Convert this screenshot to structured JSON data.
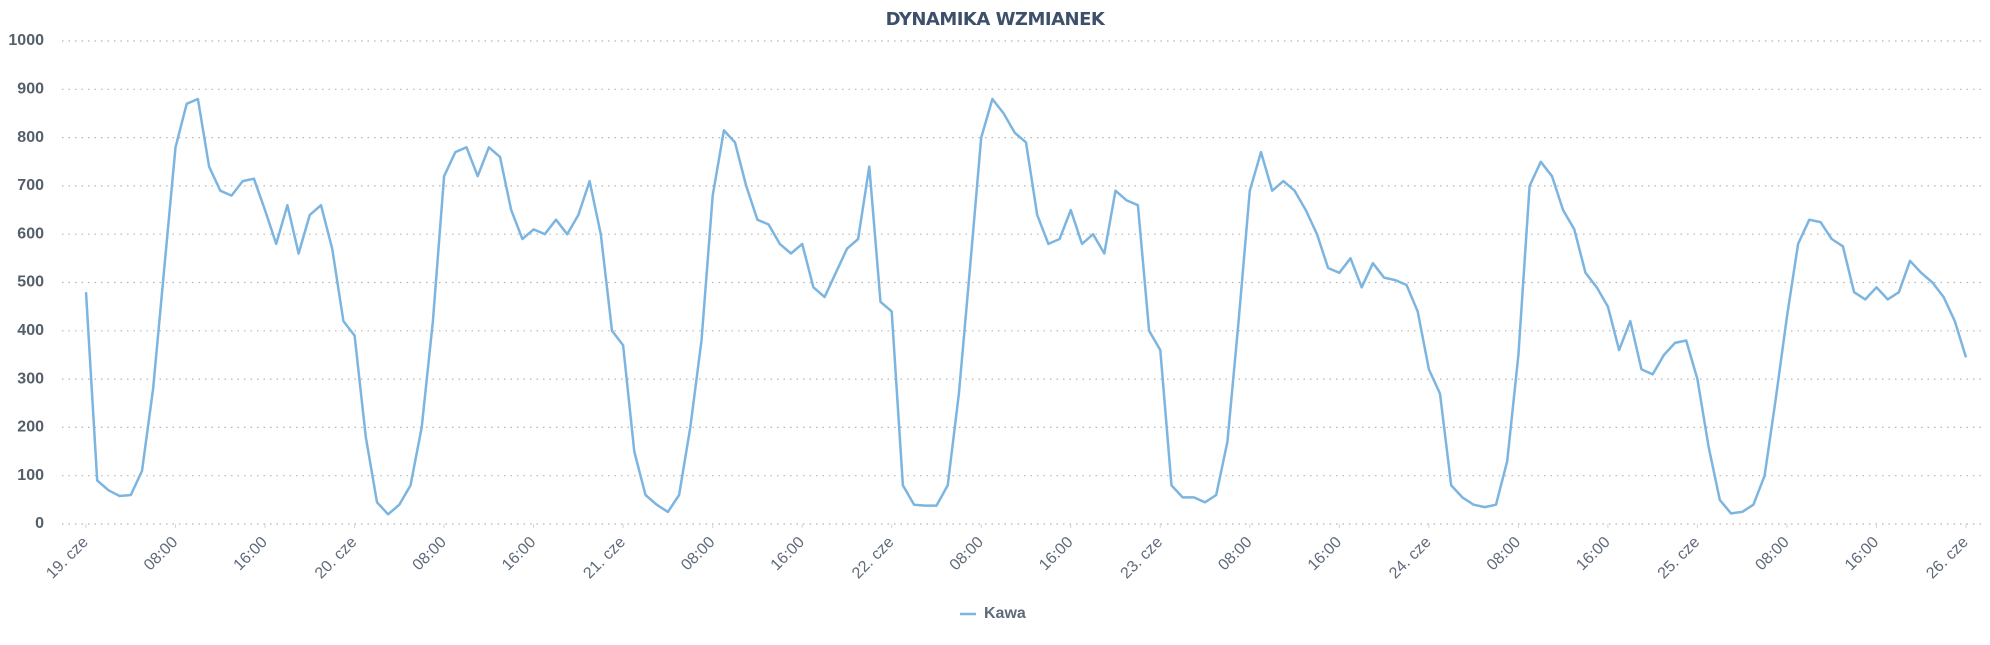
{
  "chart_data": {
    "type": "line",
    "title": "DYNAMIKA WZMIANEK",
    "x": [
      0,
      1,
      2,
      3,
      4,
      5,
      6,
      7,
      8,
      9,
      10,
      11,
      12,
      13,
      14,
      15,
      16,
      17,
      18,
      19,
      20,
      21,
      22,
      23,
      24,
      25,
      26,
      27,
      28,
      29,
      30,
      31,
      32,
      33,
      34,
      35,
      36,
      37,
      38,
      39,
      40,
      41,
      42,
      43,
      44,
      45,
      46,
      47,
      48,
      49,
      50,
      51,
      52,
      53,
      54,
      55,
      56,
      57,
      58,
      59,
      60,
      61,
      62,
      63,
      64,
      65,
      66,
      67,
      68,
      69,
      70,
      71,
      72,
      73,
      74,
      75,
      76,
      77,
      78,
      79,
      80,
      81,
      82,
      83,
      84,
      85,
      86,
      87,
      88,
      89,
      90,
      91,
      92,
      93,
      94,
      95,
      96,
      97,
      98,
      99,
      100,
      101,
      102,
      103,
      104,
      105,
      106,
      107,
      108,
      109,
      110,
      111,
      112,
      113,
      114,
      115,
      116,
      117,
      118,
      119,
      120,
      121,
      122,
      123,
      124,
      125,
      126,
      127,
      128,
      129,
      130,
      131,
      132,
      133,
      134,
      135,
      136,
      137,
      138,
      139,
      140,
      141,
      142,
      143,
      144,
      145,
      146,
      147,
      148,
      149,
      150,
      151,
      152,
      153,
      154,
      155,
      156,
      157,
      158,
      159,
      160,
      161,
      162,
      163,
      164,
      165,
      166,
      167,
      168
    ],
    "series": [
      {
        "name": "Kawa",
        "color": "#7cb5e0",
        "values": [
          480,
          90,
          70,
          58,
          60,
          110,
          280,
          530,
          780,
          870,
          880,
          740,
          690,
          680,
          710,
          715,
          650,
          580,
          660,
          560,
          640,
          660,
          570,
          420,
          390,
          180,
          45,
          20,
          40,
          80,
          200,
          420,
          720,
          770,
          780,
          720,
          780,
          760,
          650,
          590,
          610,
          600,
          630,
          600,
          640,
          710,
          600,
          400,
          370,
          150,
          60,
          40,
          25,
          60,
          200,
          380,
          680,
          815,
          790,
          700,
          630,
          620,
          580,
          560,
          580,
          490,
          470,
          520,
          570,
          590,
          740,
          460,
          440,
          80,
          40,
          38,
          38,
          80,
          270,
          530,
          800,
          880,
          850,
          810,
          790,
          640,
          580,
          590,
          650,
          580,
          600,
          560,
          690,
          670,
          660,
          400,
          360,
          80,
          55,
          55,
          45,
          60,
          170,
          420,
          690,
          770,
          690,
          710,
          690,
          650,
          600,
          530,
          520,
          550,
          490,
          540,
          510,
          505,
          495,
          440,
          320,
          270,
          80,
          55,
          40,
          35,
          40,
          130,
          350,
          700,
          750,
          720,
          650,
          610,
          520,
          490,
          450,
          360,
          420,
          320,
          310,
          350,
          375,
          380,
          300,
          160,
          50,
          22,
          25,
          40,
          100,
          260,
          430,
          580,
          630,
          625,
          590,
          575,
          480,
          465,
          490,
          465,
          480,
          545,
          520,
          500,
          470,
          420,
          345
        ]
      }
    ],
    "xlim": [
      0,
      168
    ],
    "xticks": [
      {
        "value": 0,
        "label": "19. cze"
      },
      {
        "value": 8,
        "label": "08:00"
      },
      {
        "value": 16,
        "label": "16:00"
      },
      {
        "value": 24,
        "label": "20. cze"
      },
      {
        "value": 32,
        "label": "08:00"
      },
      {
        "value": 40,
        "label": "16:00"
      },
      {
        "value": 48,
        "label": "21. cze"
      },
      {
        "value": 56,
        "label": "08:00"
      },
      {
        "value": 64,
        "label": "16:00"
      },
      {
        "value": 72,
        "label": "22. cze"
      },
      {
        "value": 80,
        "label": "08:00"
      },
      {
        "value": 88,
        "label": "16:00"
      },
      {
        "value": 96,
        "label": "23. cze"
      },
      {
        "value": 104,
        "label": "08:00"
      },
      {
        "value": 112,
        "label": "16:00"
      },
      {
        "value": 120,
        "label": "24. cze"
      },
      {
        "value": 128,
        "label": "08:00"
      },
      {
        "value": 136,
        "label": "16:00"
      },
      {
        "value": 144,
        "label": "25. cze"
      },
      {
        "value": 152,
        "label": "08:00"
      },
      {
        "value": 160,
        "label": "16:00"
      },
      {
        "value": 168,
        "label": "26. cze"
      }
    ],
    "ylim": [
      0,
      1000
    ],
    "yticks": [
      0,
      100,
      200,
      300,
      400,
      500,
      600,
      700,
      800,
      900,
      1000
    ],
    "grid": true,
    "legend": "bottom"
  }
}
